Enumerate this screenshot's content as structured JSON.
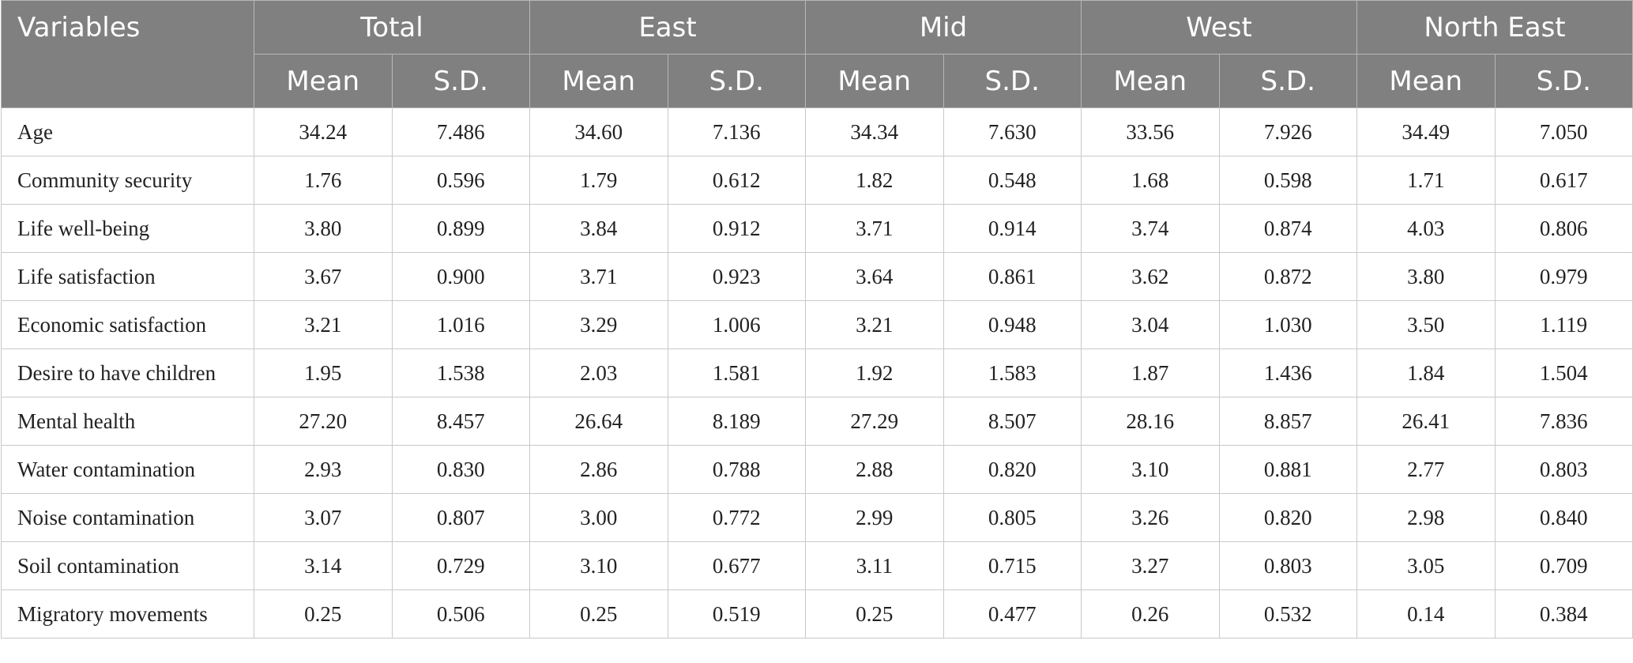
{
  "table": {
    "var_header": "Variables",
    "groups": [
      "Total",
      "East",
      "Mid",
      "West",
      "North East"
    ],
    "sub_headers": [
      "Mean",
      "S.D."
    ],
    "rows": [
      {
        "label": "Age",
        "values": [
          "34.24",
          "7.486",
          "34.60",
          "7.136",
          "34.34",
          "7.630",
          "33.56",
          "7.926",
          "34.49",
          "7.050"
        ]
      },
      {
        "label": "Community security",
        "values": [
          "1.76",
          "0.596",
          "1.79",
          "0.612",
          "1.82",
          "0.548",
          "1.68",
          "0.598",
          "1.71",
          "0.617"
        ]
      },
      {
        "label": "Life well-being",
        "values": [
          "3.80",
          "0.899",
          "3.84",
          "0.912",
          "3.71",
          "0.914",
          "3.74",
          "0.874",
          "4.03",
          "0.806"
        ]
      },
      {
        "label": "Life satisfaction",
        "values": [
          "3.67",
          "0.900",
          "3.71",
          "0.923",
          "3.64",
          "0.861",
          "3.62",
          "0.872",
          "3.80",
          "0.979"
        ]
      },
      {
        "label": "Economic satisfaction",
        "values": [
          "3.21",
          "1.016",
          "3.29",
          "1.006",
          "3.21",
          "0.948",
          "3.04",
          "1.030",
          "3.50",
          "1.119"
        ]
      },
      {
        "label": "Desire to have children",
        "values": [
          "1.95",
          "1.538",
          "2.03",
          "1.581",
          "1.92",
          "1.583",
          "1.87",
          "1.436",
          "1.84",
          "1.504"
        ]
      },
      {
        "label": "Mental health",
        "values": [
          "27.20",
          "8.457",
          "26.64",
          "8.189",
          "27.29",
          "8.507",
          "28.16",
          "8.857",
          "26.41",
          "7.836"
        ]
      },
      {
        "label": "Water contamination",
        "values": [
          "2.93",
          "0.830",
          "2.86",
          "0.788",
          "2.88",
          "0.820",
          "3.10",
          "0.881",
          "2.77",
          "0.803"
        ]
      },
      {
        "label": "Noise contamination",
        "values": [
          "3.07",
          "0.807",
          "3.00",
          "0.772",
          "2.99",
          "0.805",
          "3.26",
          "0.820",
          "2.98",
          "0.840"
        ]
      },
      {
        "label": "Soil contamination",
        "values": [
          "3.14",
          "0.729",
          "3.10",
          "0.677",
          "3.11",
          "0.715",
          "3.27",
          "0.803",
          "3.05",
          "0.709"
        ]
      },
      {
        "label": "Migratory movements",
        "values": [
          "0.25",
          "0.506",
          "0.25",
          "0.519",
          "0.25",
          "0.477",
          "0.26",
          "0.532",
          "0.14",
          "0.384"
        ]
      }
    ]
  },
  "colors": {
    "header_bg": "#808080",
    "header_text": "#ffffff",
    "border": "#c9c9c9"
  }
}
